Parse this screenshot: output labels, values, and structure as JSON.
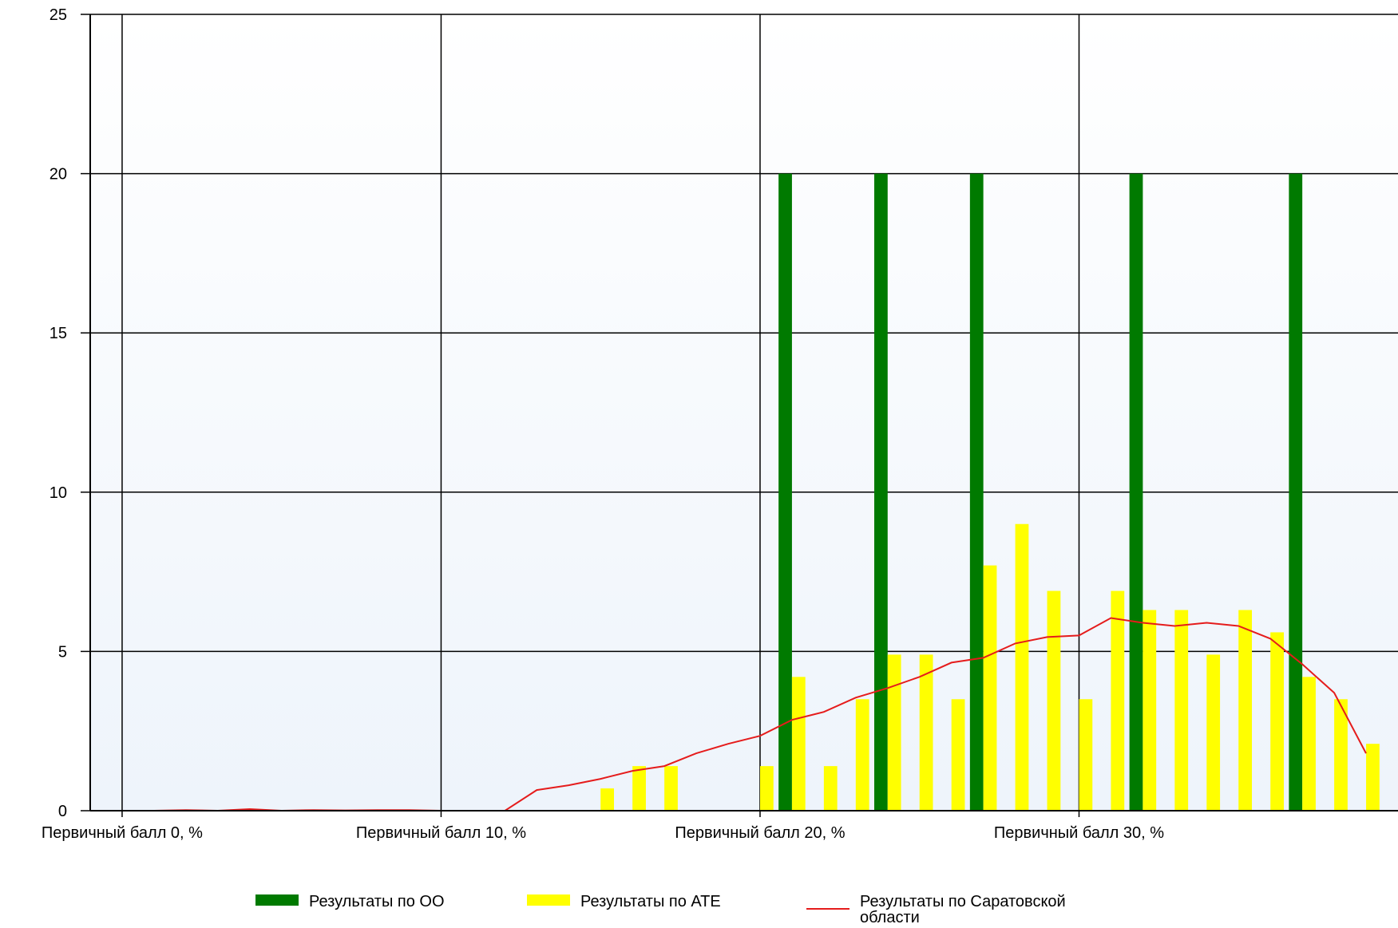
{
  "chart_data": {
    "type": "bar",
    "ylim": [
      0,
      25
    ],
    "xlim": [
      -1,
      40
    ],
    "yticks": [
      0,
      5,
      10,
      15,
      20,
      25
    ],
    "x_tick_labels": [
      {
        "x": 0,
        "label": "Первичный балл 0, %"
      },
      {
        "x": 10,
        "label": "Первичный балл 10, %"
      },
      {
        "x": 20,
        "label": "Первичный балл 20, %"
      },
      {
        "x": 30,
        "label": "Первичный балл 30, %"
      }
    ],
    "grid": true,
    "legend_position": "bottom",
    "series": [
      {
        "name": "Результаты по ОО",
        "kind": "bar",
        "color": "#007a00",
        "points": [
          {
            "x": 21,
            "y": 20
          },
          {
            "x": 24,
            "y": 20
          },
          {
            "x": 27,
            "y": 20
          },
          {
            "x": 32,
            "y": 20
          },
          {
            "x": 37,
            "y": 20
          }
        ]
      },
      {
        "name": "Результаты по АТЕ",
        "kind": "bar",
        "color": "#ffff00",
        "points": [
          {
            "x": 15,
            "y": 0.7
          },
          {
            "x": 16,
            "y": 1.4
          },
          {
            "x": 17,
            "y": 1.4
          },
          {
            "x": 20,
            "y": 1.4
          },
          {
            "x": 21,
            "y": 4.2
          },
          {
            "x": 22,
            "y": 1.4
          },
          {
            "x": 23,
            "y": 3.5
          },
          {
            "x": 24,
            "y": 4.9
          },
          {
            "x": 25,
            "y": 4.9
          },
          {
            "x": 26,
            "y": 3.5
          },
          {
            "x": 27,
            "y": 7.7
          },
          {
            "x": 28,
            "y": 9.0
          },
          {
            "x": 29,
            "y": 6.9
          },
          {
            "x": 30,
            "y": 3.5
          },
          {
            "x": 31,
            "y": 6.9
          },
          {
            "x": 32,
            "y": 6.3
          },
          {
            "x": 33,
            "y": 6.3
          },
          {
            "x": 34,
            "y": 4.9
          },
          {
            "x": 35,
            "y": 6.3
          },
          {
            "x": 36,
            "y": 5.6
          },
          {
            "x": 37,
            "y": 4.2
          },
          {
            "x": 38,
            "y": 3.5
          },
          {
            "x": 39,
            "y": 2.1
          }
        ]
      },
      {
        "name": "Результаты по Саратовской области",
        "kind": "line",
        "color": "#e51c1c",
        "points": [
          {
            "x": 0,
            "y": 0
          },
          {
            "x": 1,
            "y": 0
          },
          {
            "x": 2,
            "y": 0.02
          },
          {
            "x": 3,
            "y": 0
          },
          {
            "x": 4,
            "y": 0.05
          },
          {
            "x": 5,
            "y": 0
          },
          {
            "x": 6,
            "y": 0.02
          },
          {
            "x": 7,
            "y": 0.01
          },
          {
            "x": 8,
            "y": 0.02
          },
          {
            "x": 9,
            "y": 0.02
          },
          {
            "x": 10,
            "y": 0
          },
          {
            "x": 11,
            "y": 0
          },
          {
            "x": 12,
            "y": 0
          },
          {
            "x": 13,
            "y": 0.65
          },
          {
            "x": 14,
            "y": 0.8
          },
          {
            "x": 15,
            "y": 1.0
          },
          {
            "x": 16,
            "y": 1.25
          },
          {
            "x": 17,
            "y": 1.4
          },
          {
            "x": 18,
            "y": 1.8
          },
          {
            "x": 19,
            "y": 2.1
          },
          {
            "x": 20,
            "y": 2.35
          },
          {
            "x": 21,
            "y": 2.85
          },
          {
            "x": 22,
            "y": 3.1
          },
          {
            "x": 23,
            "y": 3.55
          },
          {
            "x": 24,
            "y": 3.85
          },
          {
            "x": 25,
            "y": 4.2
          },
          {
            "x": 26,
            "y": 4.65
          },
          {
            "x": 27,
            "y": 4.8
          },
          {
            "x": 28,
            "y": 5.25
          },
          {
            "x": 29,
            "y": 5.45
          },
          {
            "x": 30,
            "y": 5.5
          },
          {
            "x": 31,
            "y": 6.05
          },
          {
            "x": 32,
            "y": 5.9
          },
          {
            "x": 33,
            "y": 5.8
          },
          {
            "x": 34,
            "y": 5.9
          },
          {
            "x": 35,
            "y": 5.8
          },
          {
            "x": 36,
            "y": 5.4
          },
          {
            "x": 37,
            "y": 4.6
          },
          {
            "x": 38,
            "y": 3.7
          },
          {
            "x": 39,
            "y": 1.8
          }
        ]
      }
    ]
  },
  "legend": {
    "items": [
      {
        "label_line1": "Результаты по ОО",
        "label_line2": "",
        "color": "#007a00",
        "kind": "bar"
      },
      {
        "label_line1": "Результаты по АТЕ",
        "label_line2": "",
        "color": "#ffff00",
        "kind": "bar"
      },
      {
        "label_line1": "Результаты по Саратовской",
        "label_line2": "области",
        "color": "#e51c1c",
        "kind": "line"
      }
    ]
  }
}
